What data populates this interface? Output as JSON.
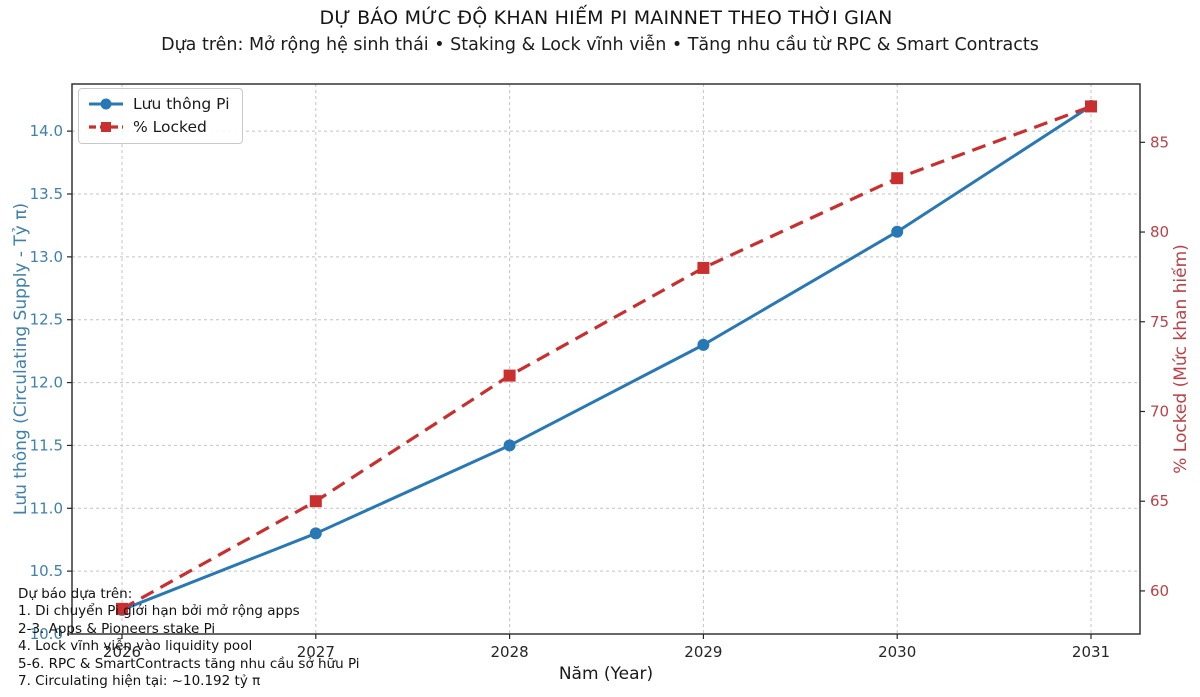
{
  "chart_data": {
    "type": "line",
    "title": "DỰ BÁO MỨC ĐỘ KHAN HIẾM PI MAINNET THEO THỜI GIAN",
    "subtitle": "Dựa trên: Mở rộng hệ sinh thái • Staking & Lock vĩnh viễn • Tăng nhu cầu từ RPC & Smart Contracts",
    "x": [
      2026,
      2027,
      2028,
      2029,
      2030,
      2031
    ],
    "xlabel": "Năm (Year)",
    "grid": true,
    "legend_position": "upper-left",
    "axes": {
      "left": {
        "label": "Lưu thông (Circulating Supply - Tỷ π)",
        "color": "#3e81ab",
        "lim": [
          10.0,
          14.375
        ],
        "ticks": [
          10.0,
          10.5,
          11.0,
          11.5,
          12.0,
          12.5,
          13.0,
          13.5,
          14.0
        ],
        "tick_decimals": 1
      },
      "right": {
        "label": "% Locked (Mức khan hiếm)",
        "color": "#bb4146",
        "lim": [
          57.6,
          88.25
        ],
        "ticks": [
          60,
          65,
          70,
          75,
          80,
          85
        ],
        "tick_decimals": 0
      }
    },
    "series": [
      {
        "name": "Lưu thông Pi",
        "axis": "left",
        "color": "#2878b5",
        "marker": "circle",
        "line_style": "solid",
        "line_width": 3,
        "values": [
          10.192,
          10.8,
          11.5,
          12.3,
          13.2,
          14.2
        ]
      },
      {
        "name": "% Locked",
        "axis": "right",
        "color": "#c92f2f",
        "marker": "square",
        "line_style": "dashed",
        "line_width": 3.2,
        "values": [
          59,
          65,
          72,
          78,
          83,
          87
        ]
      }
    ]
  },
  "annotation": {
    "lines": [
      "Dự báo dựa trên:",
      "1. Di chuyển Pi giới hạn bởi mở rộng apps",
      "2-3. Apps & Pioneers stake Pi",
      "4. Lock vĩnh viễn vào liquidity pool",
      "5-6. RPC & SmartContracts tăng nhu cầu sở hữu Pi",
      "7. Circulating hiện tại: ~10.192 tỷ π"
    ]
  }
}
